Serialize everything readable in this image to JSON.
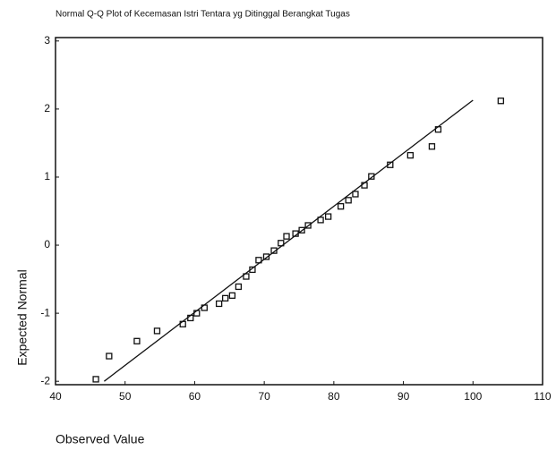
{
  "chart_data": {
    "type": "scatter",
    "title": "Normal Q-Q Plot of Kecemasan Istri Tentara yg Ditinggal Berangkat Tugas",
    "x_label": "Observed Value",
    "y_label": "Expected Normal",
    "xlim": [
      40,
      110
    ],
    "ylim": [
      -2.05,
      3.05
    ],
    "xticks": [
      40,
      50,
      60,
      70,
      80,
      90,
      100,
      110
    ],
    "yticks": [
      -2,
      -1,
      0,
      1,
      2,
      3
    ],
    "series": [
      {
        "color": "#111111",
        "x": [
          45.8,
          47.7,
          51.7,
          54.6,
          58.3,
          59.4,
          60.3,
          61.4,
          63.5,
          64.4,
          65.4,
          66.3,
          67.4,
          68.3,
          69.2,
          70.3,
          71.4,
          72.4,
          73.2,
          74.5,
          75.4,
          76.3,
          78.1,
          79.2,
          81.0,
          82.1,
          83.1,
          84.4,
          85.4,
          88.1,
          91.0,
          94.1,
          95.0,
          104.0
        ],
        "values": [
          -1.97,
          -1.63,
          -1.41,
          -1.26,
          -1.16,
          -1.07,
          -1.0,
          -0.92,
          -0.86,
          -0.78,
          -0.74,
          -0.61,
          -0.46,
          -0.36,
          -0.22,
          -0.17,
          -0.08,
          0.03,
          0.13,
          0.17,
          0.22,
          0.29,
          0.37,
          0.42,
          0.57,
          0.66,
          0.75,
          0.88,
          1.01,
          1.18,
          1.32,
          1.45,
          1.7,
          2.12
        ]
      }
    ],
    "reference_line": {
      "color": "#111111",
      "x": [
        47,
        100
      ],
      "values": [
        -2.0,
        2.13
      ]
    }
  }
}
